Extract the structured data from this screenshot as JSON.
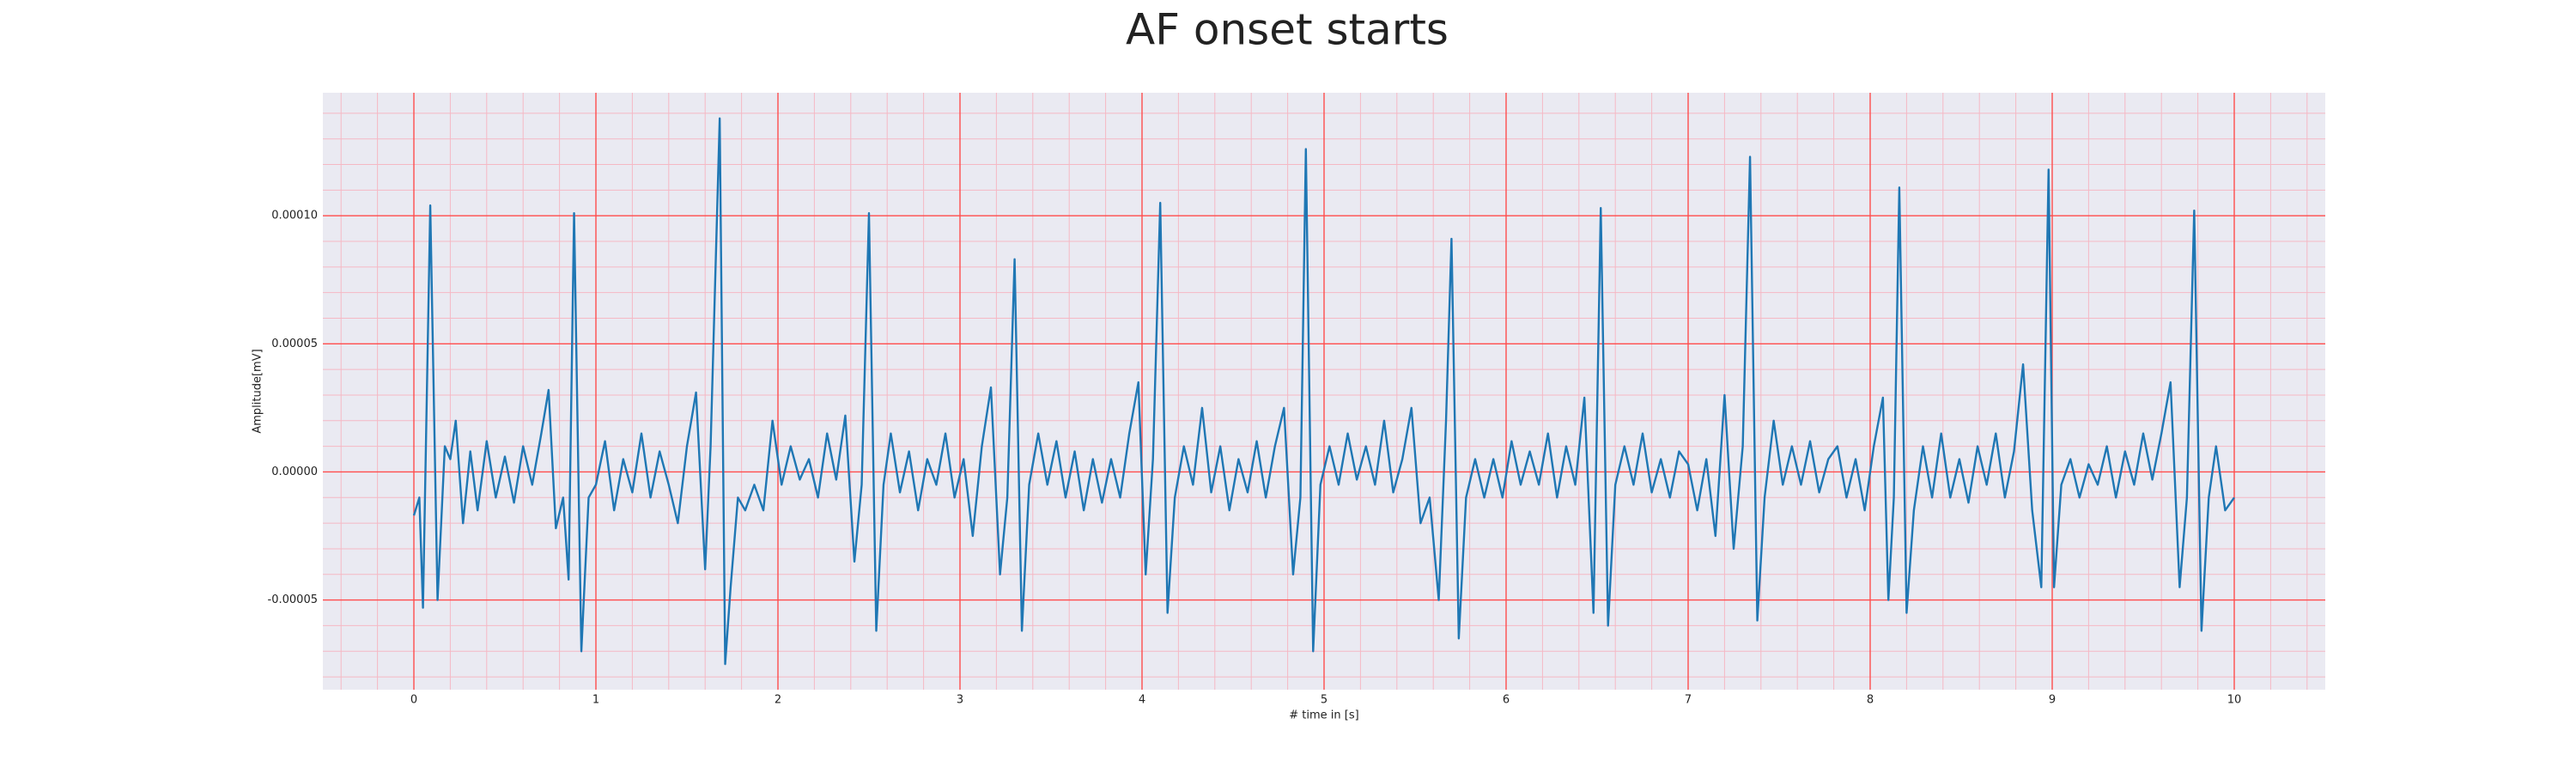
{
  "chart_data": {
    "type": "line",
    "title": "AF onset starts",
    "xlabel": "# time in [s]",
    "ylabel": "Amplitude[mV]",
    "color": "#1f77b4",
    "background": "#eaeaf2",
    "grid": true,
    "grid_color": "#ff4d4d",
    "minor_grid": {
      "color": "#f5b8c4",
      "x_step": 0.2,
      "y_step": 1e-05
    },
    "xlim": [
      -0.5,
      10.5
    ],
    "xticks": [
      0,
      1,
      2,
      3,
      4,
      5,
      6,
      7,
      8,
      9,
      10
    ],
    "ylim": [
      -8.5e-05,
      0.000148
    ],
    "yticks": [
      {
        "value": -5e-05,
        "label": "-0.00005"
      },
      {
        "value": 0,
        "label": "0.00000"
      },
      {
        "value": 5e-05,
        "label": "0.00005"
      },
      {
        "value": 0.0001,
        "label": "0.00010"
      }
    ],
    "x": [
      0.0,
      0.03,
      0.05,
      0.09,
      0.13,
      0.17,
      0.2,
      0.23,
      0.27,
      0.31,
      0.35,
      0.4,
      0.45,
      0.5,
      0.55,
      0.6,
      0.65,
      0.7,
      0.74,
      0.78,
      0.82,
      0.85,
      0.88,
      0.92,
      0.96,
      1.0,
      1.05,
      1.1,
      1.15,
      1.2,
      1.25,
      1.3,
      1.35,
      1.4,
      1.45,
      1.5,
      1.55,
      1.6,
      1.63,
      1.68,
      1.71,
      1.74,
      1.78,
      1.82,
      1.87,
      1.92,
      1.97,
      2.02,
      2.07,
      2.12,
      2.17,
      2.22,
      2.27,
      2.32,
      2.37,
      2.42,
      2.46,
      2.5,
      2.54,
      2.58,
      2.62,
      2.67,
      2.72,
      2.77,
      2.82,
      2.87,
      2.92,
      2.97,
      3.02,
      3.07,
      3.12,
      3.17,
      3.22,
      3.26,
      3.3,
      3.34,
      3.38,
      3.43,
      3.48,
      3.53,
      3.58,
      3.63,
      3.68,
      3.73,
      3.78,
      3.83,
      3.88,
      3.93,
      3.98,
      4.02,
      4.06,
      4.1,
      4.14,
      4.18,
      4.23,
      4.28,
      4.33,
      4.38,
      4.43,
      4.48,
      4.53,
      4.58,
      4.63,
      4.68,
      4.73,
      4.78,
      4.83,
      4.87,
      4.9,
      4.94,
      4.98,
      5.03,
      5.08,
      5.13,
      5.18,
      5.23,
      5.28,
      5.33,
      5.38,
      5.43,
      5.48,
      5.53,
      5.58,
      5.63,
      5.67,
      5.7,
      5.74,
      5.78,
      5.83,
      5.88,
      5.93,
      5.98,
      6.03,
      6.08,
      6.13,
      6.18,
      6.23,
      6.28,
      6.33,
      6.38,
      6.43,
      6.48,
      6.52,
      6.56,
      6.6,
      6.65,
      6.7,
      6.75,
      6.8,
      6.85,
      6.9,
      6.95,
      7.0,
      7.05,
      7.1,
      7.15,
      7.2,
      7.25,
      7.3,
      7.34,
      7.38,
      7.42,
      7.47,
      7.52,
      7.57,
      7.62,
      7.67,
      7.72,
      7.77,
      7.82,
      7.87,
      7.92,
      7.97,
      8.02,
      8.07,
      8.1,
      8.13,
      8.16,
      8.2,
      8.24,
      8.29,
      8.34,
      8.39,
      8.44,
      8.49,
      8.54,
      8.59,
      8.64,
      8.69,
      8.74,
      8.79,
      8.84,
      8.89,
      8.94,
      8.98,
      9.01,
      9.05,
      9.1,
      9.15,
      9.2,
      9.25,
      9.3,
      9.35,
      9.4,
      9.45,
      9.5,
      9.55,
      9.6,
      9.65,
      9.7,
      9.74,
      9.78,
      9.82,
      9.86,
      9.9,
      9.95,
      10.0
    ],
    "values": [
      -1.7e-05,
      -1e-05,
      -5.3e-05,
      0.000104,
      -5e-05,
      1e-05,
      5e-06,
      2e-05,
      -2e-05,
      8e-06,
      -1.5e-05,
      1.2e-05,
      -1e-05,
      6e-06,
      -1.2e-05,
      1e-05,
      -5e-06,
      1.5e-05,
      3.2e-05,
      -2.2e-05,
      -1e-05,
      -4.2e-05,
      0.000101,
      -7e-05,
      -1e-05,
      -5e-06,
      1.2e-05,
      -1.5e-05,
      5e-06,
      -8e-06,
      1.5e-05,
      -1e-05,
      8e-06,
      -5e-06,
      -2e-05,
      1e-05,
      3.1e-05,
      -3.8e-05,
      1e-05,
      0.000138,
      -7.5e-05,
      -4.5e-05,
      -1e-05,
      -1.5e-05,
      -5e-06,
      -1.5e-05,
      2e-05,
      -5e-06,
      1e-05,
      -3e-06,
      5e-06,
      -1e-05,
      1.5e-05,
      -3e-06,
      2.2e-05,
      -3.5e-05,
      -5e-06,
      0.000101,
      -6.2e-05,
      -5e-06,
      1.5e-05,
      -8e-06,
      8e-06,
      -1.5e-05,
      5e-06,
      -5e-06,
      1.5e-05,
      -1e-05,
      5e-06,
      -2.5e-05,
      1e-05,
      3.3e-05,
      -4e-05,
      -1e-05,
      8.3e-05,
      -6.2e-05,
      -5e-06,
      1.5e-05,
      -5e-06,
      1.2e-05,
      -1e-05,
      8e-06,
      -1.5e-05,
      5e-06,
      -1.2e-05,
      5e-06,
      -1e-05,
      1.5e-05,
      3.5e-05,
      -4e-05,
      5e-06,
      0.000105,
      -5.5e-05,
      -1e-05,
      1e-05,
      -5e-06,
      2.5e-05,
      -8e-06,
      1e-05,
      -1.5e-05,
      5e-06,
      -8e-06,
      1.2e-05,
      -1e-05,
      1e-05,
      2.5e-05,
      -4e-05,
      -1e-05,
      0.000126,
      -7e-05,
      -5e-06,
      1e-05,
      -5e-06,
      1.5e-05,
      -3e-06,
      1e-05,
      -5e-06,
      2e-05,
      -8e-06,
      5e-06,
      2.5e-05,
      -2e-05,
      -1e-05,
      -5e-05,
      2e-05,
      9.1e-05,
      -6.5e-05,
      -1e-05,
      5e-06,
      -1e-05,
      5e-06,
      -1e-05,
      1.2e-05,
      -5e-06,
      8e-06,
      -5e-06,
      1.5e-05,
      -1e-05,
      1e-05,
      -5e-06,
      2.9e-05,
      -5.5e-05,
      0.000103,
      -6e-05,
      -5e-06,
      1e-05,
      -5e-06,
      1.5e-05,
      -8e-06,
      5e-06,
      -1e-05,
      8e-06,
      3e-06,
      -1.5e-05,
      5e-06,
      -2.5e-05,
      3e-05,
      -3e-05,
      1e-05,
      0.000123,
      -5.8e-05,
      -1e-05,
      2e-05,
      -5e-06,
      1e-05,
      -5e-06,
      1.2e-05,
      -8e-06,
      5e-06,
      1e-05,
      -1e-05,
      5e-06,
      -1.5e-05,
      1e-05,
      2.9e-05,
      -5e-05,
      -1e-05,
      0.000111,
      -5.5e-05,
      -1.5e-05,
      1e-05,
      -1e-05,
      1.5e-05,
      -1e-05,
      5e-06,
      -1.2e-05,
      1e-05,
      -5e-06,
      1.5e-05,
      -1e-05,
      8e-06,
      4.2e-05,
      -1.5e-05,
      -4.5e-05,
      0.000118,
      -4.5e-05,
      -5e-06,
      5e-06,
      -1e-05,
      3e-06,
      -5e-06,
      1e-05,
      -1e-05,
      8e-06,
      -5e-06,
      1.5e-05,
      -3e-06,
      1.5e-05,
      3.5e-05,
      -4.5e-05,
      -1e-05,
      0.000102,
      -6.2e-05,
      -1e-05,
      1e-05,
      -1.5e-05,
      -1e-05
    ]
  }
}
